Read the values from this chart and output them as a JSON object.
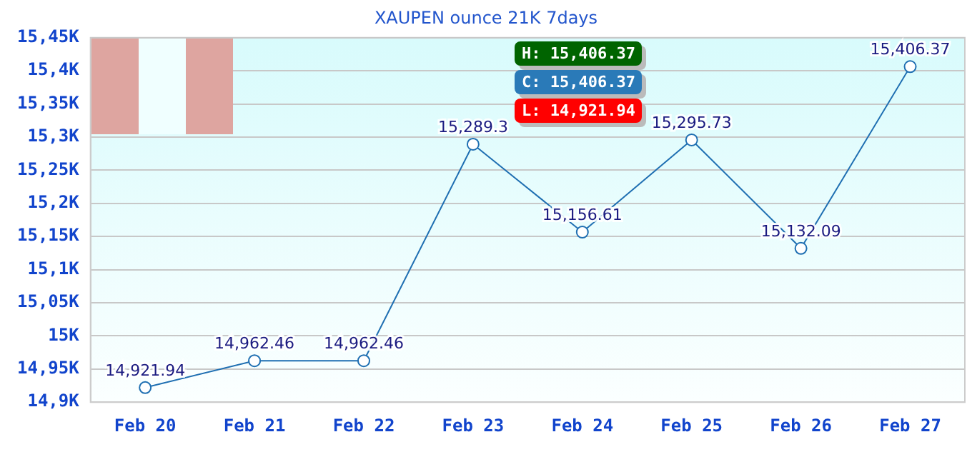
{
  "chart_data": {
    "type": "line",
    "title": "XAUPEN ounce 21K 7days",
    "categories": [
      "Feb 20",
      "Feb 21",
      "Feb 22",
      "Feb 23",
      "Feb 24",
      "Feb 25",
      "Feb 26",
      "Feb 27"
    ],
    "series": [
      {
        "color": "#1f6fb2",
        "values": [
          14921.94,
          14962.46,
          14962.46,
          15289.3,
          15156.61,
          15295.73,
          15132.09,
          15406.37
        ],
        "value_labels": [
          "14,921.94",
          "14,962.46",
          "14,962.46",
          "15,289.3",
          "15,156.61",
          "15,295.73",
          "15,132.09",
          "15,406.37"
        ]
      }
    ],
    "ylim": [
      14900,
      15450
    ],
    "yticks": [
      {
        "value": 14900,
        "label": "14,9K"
      },
      {
        "value": 14950,
        "label": "14,95K"
      },
      {
        "value": 15000,
        "label": "15K"
      },
      {
        "value": 15050,
        "label": "15,05K"
      },
      {
        "value": 15100,
        "label": "15,1K"
      },
      {
        "value": 15150,
        "label": "15,15K"
      },
      {
        "value": 15200,
        "label": "15,2K"
      },
      {
        "value": 15250,
        "label": "15,25K"
      },
      {
        "value": 15300,
        "label": "15,3K"
      },
      {
        "value": 15350,
        "label": "15,35K"
      },
      {
        "value": 15400,
        "label": "15,4K"
      },
      {
        "value": 15450,
        "label": "15,45K"
      }
    ],
    "grid": "y",
    "legend": false,
    "marker": "circle",
    "line_style": "solid",
    "annotations": [
      "H: 15,406.37",
      "C: 15,406.37",
      "L: 14,921.94"
    ]
  }
}
